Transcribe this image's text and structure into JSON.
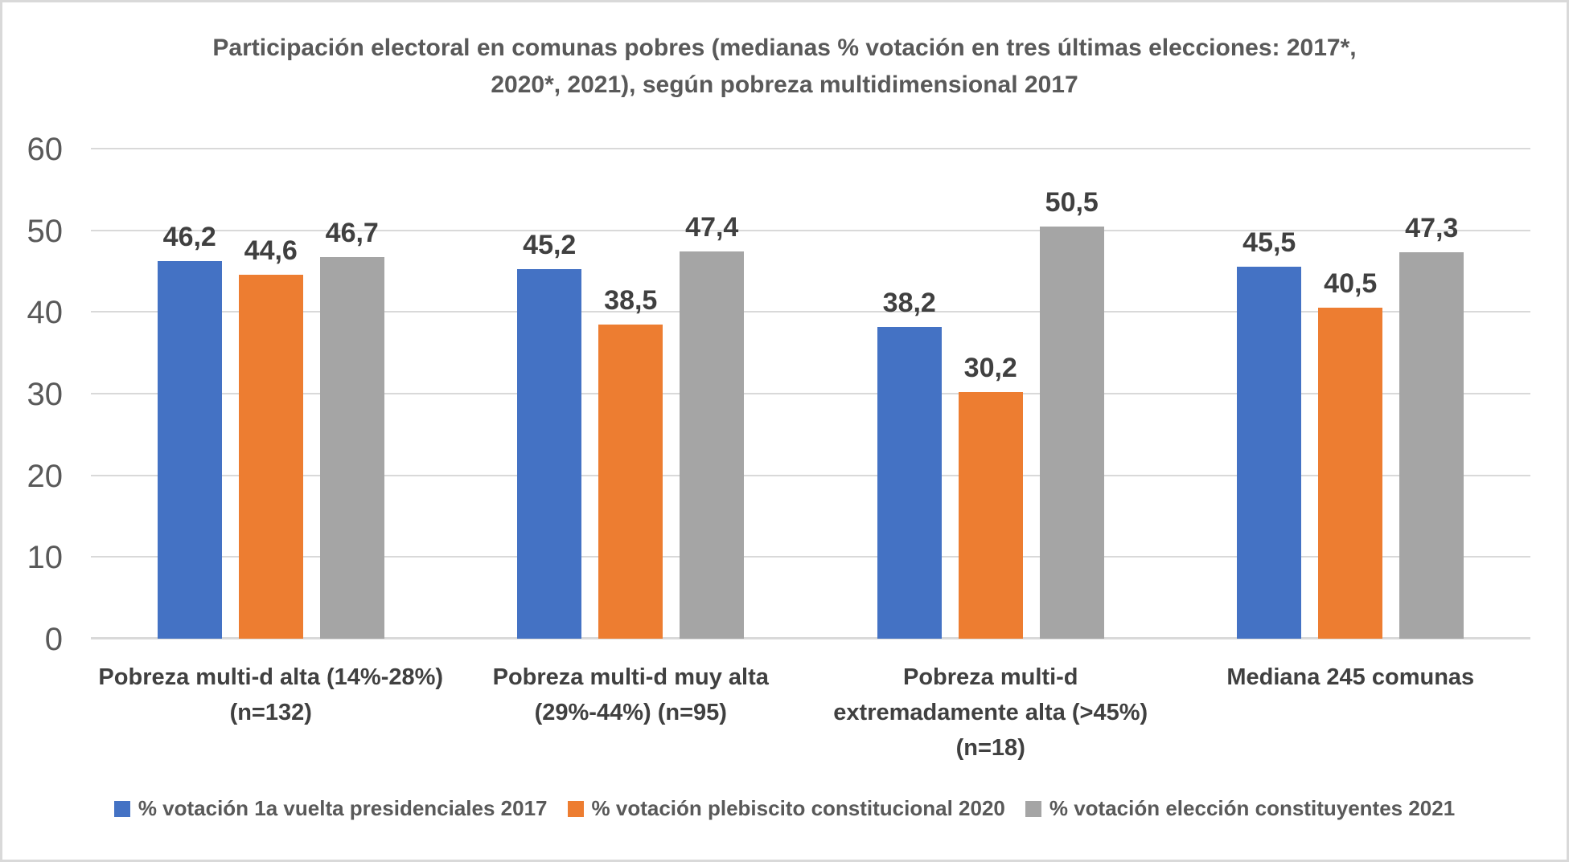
{
  "header": {
    "lines": [
      "Participación electoral en comunas pobres (medianas % votación en tres últimas elecciones: 2017*,",
      "2020*, 2021), según pobreza multidimensional 2017"
    ]
  },
  "colors": {
    "background": "#FFFFFF",
    "border": "#D9D9D9",
    "gridline": "#D9D9D9",
    "title_text": "#595959",
    "axis_text": "#595959",
    "data_label_text": "#404040",
    "category_text": "#404040",
    "legend_text": "#595959"
  },
  "chart_data": {
    "type": "bar",
    "title": "Participación electoral en comunas pobres (medianas % votación en tres últimas elecciones: 2017*, 2020*, 2021), según pobreza multidimensional 2017",
    "categories": [
      "Pobreza multi-d alta (14%-28%) (n=132)",
      "Pobreza multi-d muy alta (29%-44%) (n=95)",
      "Pobreza multi-d extremadamente alta (>45%) (n=18)",
      "Mediana 245 comunas"
    ],
    "series": [
      {
        "name": "% votación 1a vuelta presidenciales 2017",
        "color": "#4472C4",
        "values": [
          46.2,
          45.2,
          38.2,
          45.5
        ]
      },
      {
        "name": "% votación plebiscito constitucional 2020",
        "color": "#ED7D31",
        "values": [
          44.6,
          38.5,
          30.2,
          40.5
        ]
      },
      {
        "name": "% votación elección constituyentes 2021",
        "color": "#A5A5A5",
        "values": [
          46.7,
          47.4,
          50.5,
          47.3
        ]
      }
    ],
    "data_labels": [
      [
        "46,2",
        "45,2",
        "38,2",
        "45,5"
      ],
      [
        "44,6",
        "38,5",
        "30,2",
        "40,5"
      ],
      [
        "46,7",
        "47,4",
        "50,5",
        "47,3"
      ]
    ],
    "y_axis": {
      "min": 0,
      "max": 60,
      "step": 10,
      "ticks": [
        "0",
        "10",
        "20",
        "30",
        "40",
        "50",
        "60"
      ]
    },
    "grid": true,
    "legend_position": "bottom",
    "decimal_separator": ","
  }
}
